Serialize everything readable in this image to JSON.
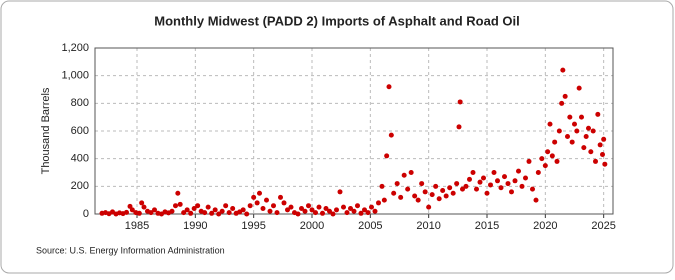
{
  "chart_data": {
    "type": "scatter",
    "title": "Monthly Midwest (PADD 2) Imports of Asphalt and Road Oil",
    "y_label": "Thousand Barrels",
    "source": "Source: U.S. Energy Information Administration",
    "color": "#cc0000",
    "grid": true,
    "xlim": [
      1981.4,
      2025.8
    ],
    "xticks": [
      1985,
      1990,
      1995,
      2000,
      2005,
      2010,
      2015,
      2020,
      2025
    ],
    "ylim": [
      0,
      1200
    ],
    "yticks": [
      0,
      200,
      400,
      600,
      800,
      {
        "value": 1000,
        "label": "1,000"
      },
      {
        "value": 1200,
        "label": "1,200"
      }
    ],
    "x": [
      1982.0,
      1982.3,
      1982.6,
      1982.9,
      1983.2,
      1983.5,
      1983.8,
      1984.1,
      1984.4,
      1984.6,
      1984.9,
      1985.2,
      1985.4,
      1985.6,
      1985.9,
      1986.2,
      1986.5,
      1986.8,
      1987.1,
      1987.4,
      1987.7,
      1988.0,
      1988.3,
      1988.5,
      1988.7,
      1989.0,
      1989.3,
      1989.6,
      1989.9,
      1990.2,
      1990.5,
      1990.8,
      1991.1,
      1991.4,
      1991.7,
      1992.0,
      1992.3,
      1992.6,
      1992.9,
      1993.2,
      1993.5,
      1993.8,
      1994.1,
      1994.4,
      1994.7,
      1995.0,
      1995.3,
      1995.5,
      1995.8,
      1996.1,
      1996.4,
      1996.7,
      1997.0,
      1997.3,
      1997.6,
      1997.9,
      1998.2,
      1998.5,
      1998.8,
      1999.1,
      1999.4,
      1999.7,
      2000.0,
      2000.3,
      2000.6,
      2000.9,
      2001.2,
      2001.5,
      2001.8,
      2002.1,
      2002.4,
      2002.7,
      2003.0,
      2003.3,
      2003.6,
      2003.9,
      2004.2,
      2004.5,
      2004.8,
      2005.1,
      2005.4,
      2005.7,
      2006.0,
      2006.2,
      2006.4,
      2006.6,
      2006.8,
      2007.0,
      2007.3,
      2007.6,
      2007.9,
      2008.2,
      2008.5,
      2008.8,
      2009.1,
      2009.4,
      2009.7,
      2010.0,
      2010.3,
      2010.6,
      2010.9,
      2011.2,
      2011.5,
      2011.8,
      2012.1,
      2012.4,
      2012.6,
      2012.7,
      2012.9,
      2013.2,
      2013.5,
      2013.8,
      2014.1,
      2014.4,
      2014.7,
      2015.0,
      2015.3,
      2015.6,
      2015.9,
      2016.2,
      2016.5,
      2016.8,
      2017.1,
      2017.4,
      2017.7,
      2018.0,
      2018.3,
      2018.6,
      2018.9,
      2019.2,
      2019.4,
      2019.7,
      2020.0,
      2020.2,
      2020.4,
      2020.6,
      2020.8,
      2021.0,
      2021.2,
      2021.4,
      2021.5,
      2021.7,
      2021.9,
      2022.1,
      2022.3,
      2022.5,
      2022.7,
      2022.9,
      2023.1,
      2023.3,
      2023.5,
      2023.7,
      2023.9,
      2024.1,
      2024.3,
      2024.5,
      2024.7,
      2024.9,
      2025.0,
      2025.1
    ],
    "values": [
      5,
      10,
      2,
      15,
      0,
      8,
      3,
      12,
      55,
      30,
      10,
      5,
      80,
      50,
      20,
      10,
      30,
      5,
      0,
      15,
      8,
      20,
      60,
      150,
      70,
      10,
      30,
      5,
      40,
      60,
      20,
      10,
      50,
      5,
      30,
      0,
      20,
      60,
      10,
      40,
      5,
      15,
      30,
      0,
      60,
      120,
      80,
      150,
      40,
      100,
      20,
      60,
      10,
      120,
      80,
      30,
      50,
      10,
      0,
      40,
      20,
      60,
      30,
      10,
      50,
      5,
      40,
      20,
      0,
      30,
      160,
      50,
      10,
      40,
      20,
      60,
      5,
      30,
      10,
      50,
      20,
      80,
      200,
      100,
      420,
      920,
      570,
      150,
      220,
      120,
      280,
      180,
      300,
      130,
      100,
      220,
      160,
      50,
      140,
      200,
      110,
      170,
      130,
      190,
      150,
      220,
      630,
      810,
      180,
      200,
      250,
      300,
      180,
      230,
      260,
      150,
      210,
      300,
      240,
      190,
      270,
      220,
      160,
      240,
      310,
      200,
      260,
      380,
      180,
      100,
      300,
      400,
      350,
      450,
      650,
      420,
      520,
      380,
      600,
      800,
      1040,
      850,
      560,
      700,
      520,
      650,
      600,
      910,
      700,
      480,
      560,
      620,
      450,
      600,
      380,
      720,
      500,
      430,
      540,
      360
    ]
  }
}
